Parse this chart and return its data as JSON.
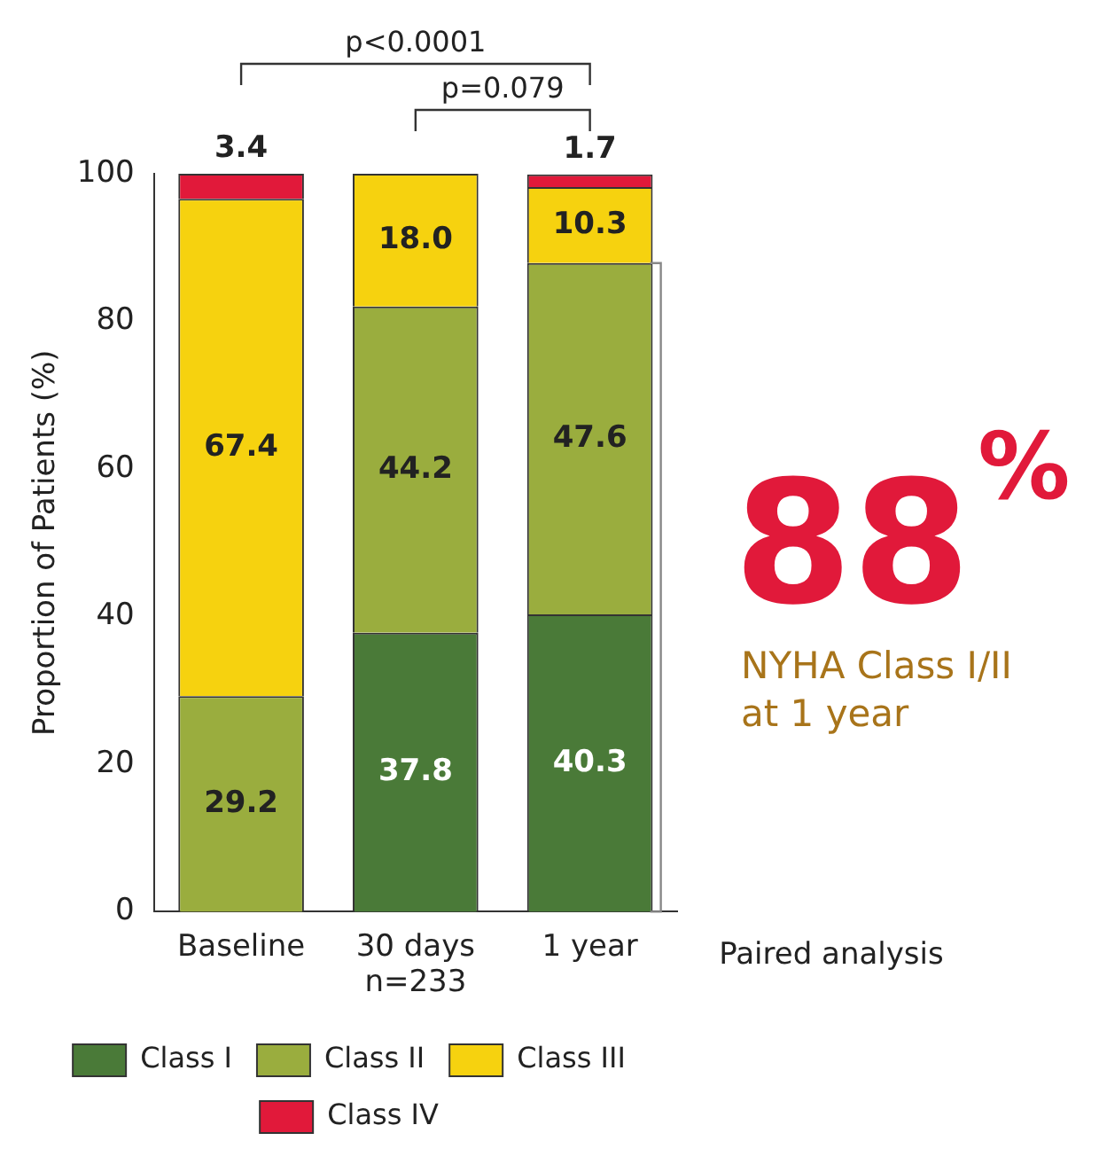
{
  "chart_data": {
    "type": "bar",
    "stacked": true,
    "categories": [
      "Baseline",
      "30 days\nn=233",
      "1 year"
    ],
    "series": [
      {
        "name": "Class I",
        "color": "#4a7a38",
        "values": [
          null,
          37.8,
          40.3
        ],
        "value_labels": [
          null,
          "37.8",
          "40.3"
        ]
      },
      {
        "name": "Class II",
        "color": "#9aad3e",
        "values": [
          29.2,
          44.2,
          47.6
        ],
        "value_labels": [
          "29.2",
          "44.2",
          "47.6"
        ]
      },
      {
        "name": "Class III",
        "color": "#f6d20f",
        "values": [
          67.4,
          18.0,
          10.3
        ],
        "value_labels": [
          "67.4",
          "18.0",
          "10.3"
        ]
      },
      {
        "name": "Class IV",
        "color": "#e1193a",
        "values": [
          3.4,
          null,
          1.7
        ],
        "value_labels": [
          "3.4",
          null,
          "1.7"
        ]
      }
    ],
    "ylabel": "Proportion of Patients (%)",
    "ylim": [
      0,
      100
    ],
    "yticks": [
      0,
      20,
      40,
      60,
      80,
      100
    ],
    "grid": false,
    "legend": "bottom",
    "annotations": [
      "p<0.0001",
      "p=0.079",
      "88%",
      "NYHA Class I/II\nat 1 year",
      "Paired analysis"
    ]
  }
}
